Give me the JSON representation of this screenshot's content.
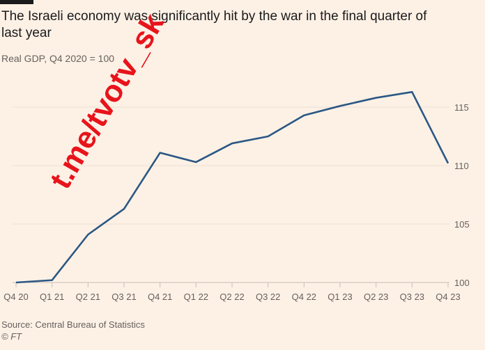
{
  "title": "The Israeli economy was significantly hit by the war in the final quarter of last year",
  "subtitle": "Real GDP, Q4 2020 = 100",
  "source": "Source: Central Bureau of Statistics",
  "copyright": "© FT",
  "watermark": "t.me/tvotv_sk",
  "chart_data": {
    "type": "line",
    "title": "The Israeli economy was significantly hit by the war in the final quarter of last year",
    "subtitle": "Real GDP, Q4 2020 = 100",
    "categories": [
      "Q4 20",
      "Q1 21",
      "Q2 21",
      "Q3 21",
      "Q4 21",
      "Q1 22",
      "Q2 22",
      "Q3 22",
      "Q4 22",
      "Q1 23",
      "Q2 23",
      "Q3 23",
      "Q4 23"
    ],
    "values": [
      100,
      100.2,
      104.1,
      106.3,
      111.1,
      110.3,
      111.9,
      112.5,
      114.3,
      115.1,
      115.8,
      116.3,
      110.2
    ],
    "yticks": [
      100,
      105,
      110,
      115
    ],
    "ylim": [
      100,
      117
    ],
    "yaxis_side": "right",
    "grid": true,
    "line_color": "#2b5784"
  }
}
